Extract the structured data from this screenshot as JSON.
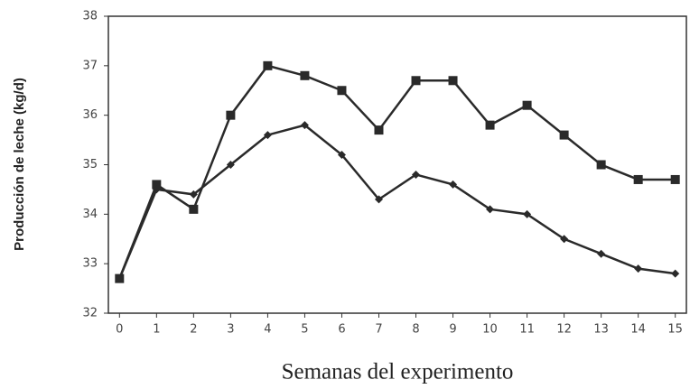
{
  "chart_data": {
    "type": "line",
    "x_label": "Semanas del experimento",
    "y_label": "Producción de leche (kg/d)",
    "x": [
      0,
      1,
      2,
      3,
      4,
      5,
      6,
      7,
      8,
      9,
      10,
      11,
      12,
      13,
      14,
      15
    ],
    "series": [
      {
        "color": "#2a2a2a",
        "marker": "square",
        "values": [
          32.7,
          34.6,
          34.1,
          36.0,
          37.0,
          36.8,
          36.5,
          35.7,
          36.7,
          36.7,
          35.8,
          36.2,
          35.6,
          35.0,
          34.7,
          34.7
        ]
      },
      {
        "color": "#2a2a2a",
        "marker": "diamond",
        "values": [
          32.7,
          34.5,
          34.4,
          35.0,
          35.6,
          35.8,
          35.2,
          34.3,
          34.8,
          34.6,
          34.1,
          34.0,
          33.5,
          33.2,
          32.9,
          32.8
        ]
      }
    ],
    "xlim": [
      -0.3,
      15.3
    ],
    "xticks": [
      0,
      1,
      2,
      3,
      4,
      5,
      6,
      7,
      8,
      9,
      10,
      11,
      12,
      13,
      14,
      15
    ],
    "ylim": [
      32,
      38
    ],
    "yticks": [
      32,
      33,
      34,
      35,
      36,
      37,
      38
    ]
  }
}
